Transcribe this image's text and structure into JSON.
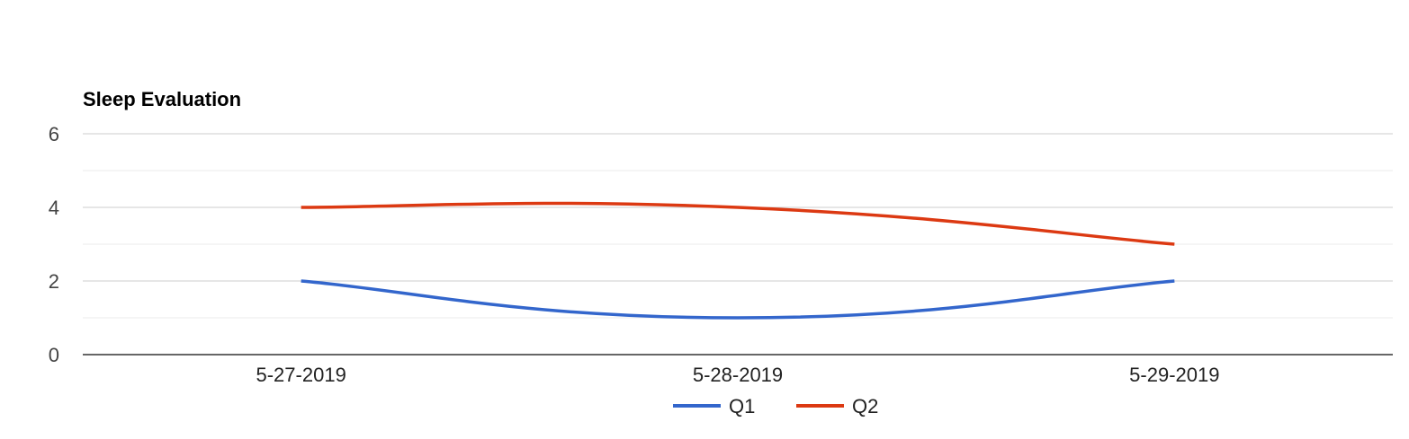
{
  "chart_data": {
    "type": "line",
    "title": "Sleep Evaluation",
    "categories": [
      "5-27-2019",
      "5-28-2019",
      "5-29-2019"
    ],
    "series": [
      {
        "name": "Q1",
        "values": [
          2,
          1,
          2
        ],
        "color": "#3366cc"
      },
      {
        "name": "Q2",
        "values": [
          4,
          4,
          3
        ],
        "color": "#dc3912"
      }
    ],
    "ylim": [
      0,
      6
    ],
    "yticks": [
      0,
      2,
      4,
      6
    ],
    "minor_gridlines": [
      1,
      3,
      5
    ],
    "curve": "smooth",
    "grid": true,
    "legend": "bottom"
  }
}
